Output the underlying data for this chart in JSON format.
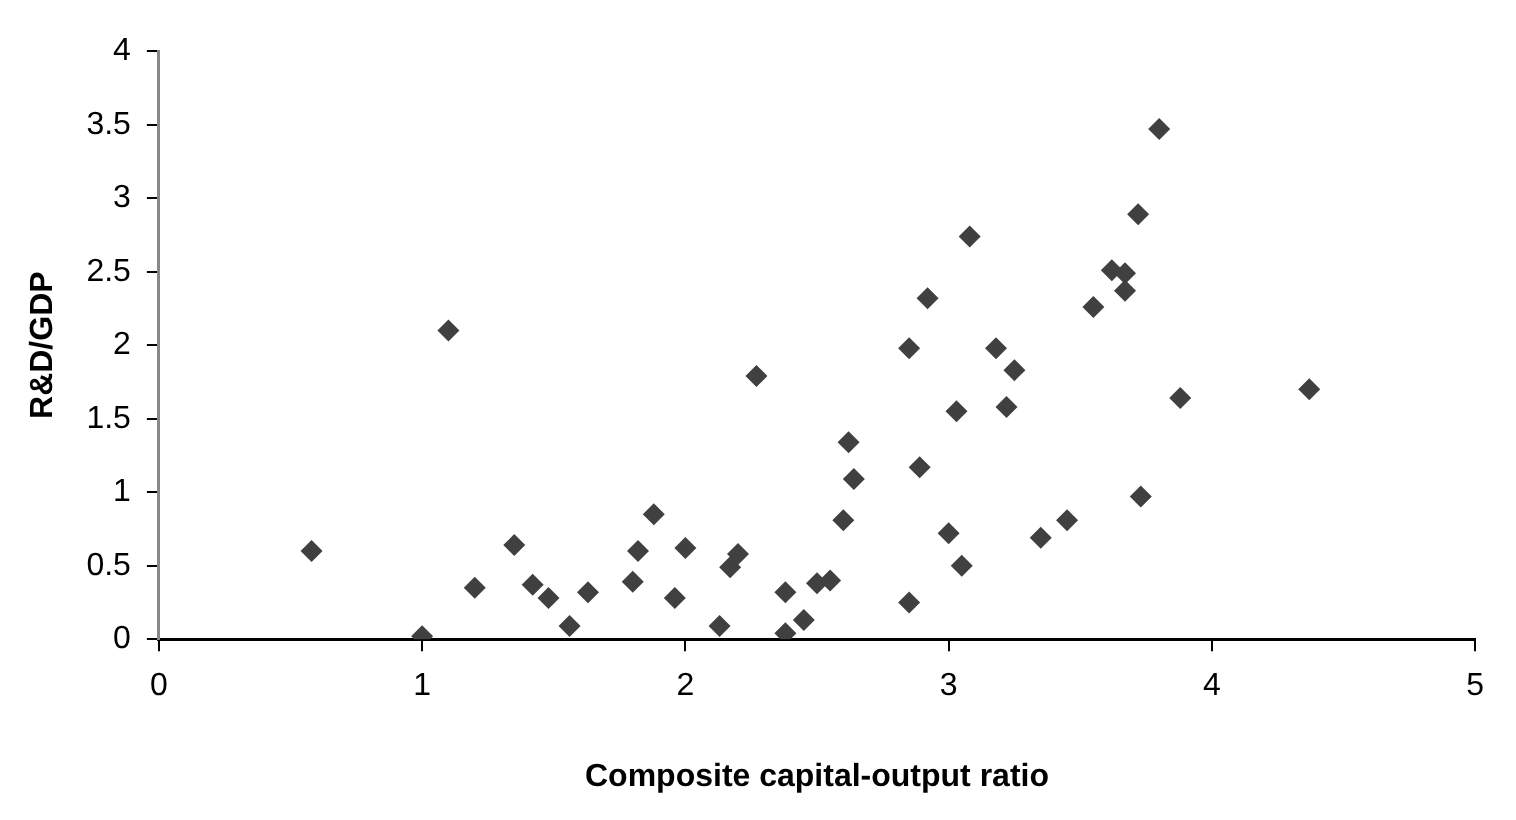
{
  "chart_data": {
    "type": "scatter",
    "xlabel": "Composite capital-output ratio",
    "ylabel": "R&D/GDP",
    "x": [
      0.58,
      1.0,
      1.1,
      1.2,
      1.35,
      1.42,
      1.48,
      1.56,
      1.63,
      1.8,
      1.82,
      1.88,
      1.96,
      2.0,
      2.13,
      2.17,
      2.2,
      2.27,
      2.38,
      2.38,
      2.45,
      2.5,
      2.55,
      2.6,
      2.62,
      2.64,
      2.85,
      2.85,
      2.89,
      2.92,
      3.0,
      3.03,
      3.05,
      3.08,
      3.18,
      3.22,
      3.25,
      3.35,
      3.45,
      3.55,
      3.62,
      3.67,
      3.67,
      3.72,
      3.73,
      3.8,
      3.88,
      4.37
    ],
    "series": [
      {
        "color": "#404040",
        "values": [
          0.6,
          0.02,
          2.1,
          0.35,
          0.64,
          0.37,
          0.28,
          0.09,
          0.32,
          0.39,
          0.6,
          0.85,
          0.28,
          0.62,
          0.09,
          0.49,
          0.58,
          1.79,
          0.32,
          0.04,
          0.13,
          0.38,
          0.4,
          0.81,
          1.34,
          1.09,
          0.25,
          1.98,
          1.17,
          2.32,
          0.72,
          1.55,
          0.5,
          2.74,
          1.98,
          1.58,
          1.83,
          0.69,
          0.81,
          2.26,
          2.51,
          2.49,
          2.37,
          2.89,
          0.97,
          3.47,
          1.64,
          1.7
        ]
      }
    ],
    "marker": "diamond",
    "xlim": [
      0,
      5
    ],
    "xticks": [
      0,
      1,
      2,
      3,
      4,
      5
    ],
    "ylim": [
      0,
      4
    ],
    "yticks": [
      0,
      0.5,
      1,
      1.5,
      2,
      2.5,
      3,
      3.5,
      4
    ],
    "grid": false,
    "legend": false
  }
}
